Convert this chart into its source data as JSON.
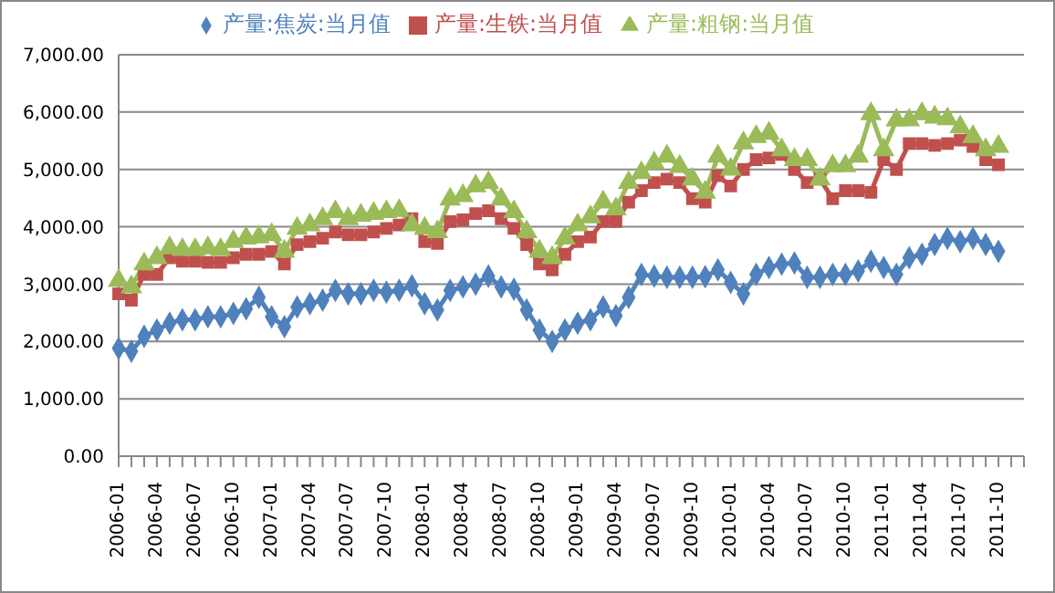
{
  "chart_data": {
    "type": "line",
    "categories": [
      "2006-01",
      null,
      null,
      "2006-04",
      null,
      null,
      "2006-07",
      null,
      null,
      "2006-10",
      null,
      null,
      "2007-01",
      null,
      null,
      "2007-04",
      null,
      null,
      "2007-07",
      null,
      null,
      "2007-10",
      null,
      null,
      "2008-01",
      null,
      null,
      "2008-04",
      null,
      null,
      "2008-07",
      null,
      null,
      "2008-10",
      null,
      null,
      "2009-01",
      null,
      null,
      "2009-04",
      null,
      null,
      "2009-07",
      null,
      null,
      "2009-10",
      null,
      null,
      "2010-01",
      null,
      null,
      "2010-04",
      null,
      null,
      "2010-07",
      null,
      null,
      "2010-10",
      null,
      null,
      "2011-01",
      null,
      null,
      "2011-04",
      null,
      null,
      "2011-07",
      null,
      null,
      "2011-10",
      null,
      null
    ],
    "series": [
      {
        "name": "产量:焦炭:当月值",
        "color": "#4f81bd",
        "marker": "diamond",
        "values": [
          1880,
          1830,
          2090,
          2200,
          2320,
          2380,
          2380,
          2430,
          2430,
          2490,
          2570,
          2770,
          2430,
          2260,
          2600,
          2660,
          2720,
          2890,
          2830,
          2830,
          2890,
          2860,
          2890,
          2970,
          2660,
          2550,
          2890,
          2950,
          3000,
          3140,
          2950,
          2910,
          2550,
          2200,
          2000,
          2200,
          2320,
          2380,
          2600,
          2450,
          2770,
          3170,
          3140,
          3120,
          3120,
          3120,
          3130,
          3250,
          3030,
          2830,
          3170,
          3290,
          3350,
          3370,
          3120,
          3120,
          3170,
          3170,
          3230,
          3400,
          3290,
          3170,
          3460,
          3520,
          3690,
          3800,
          3740,
          3800,
          3690,
          3570,
          null,
          null
        ]
      },
      {
        "name": "产量:生铁:当月值",
        "color": "#c0504d",
        "marker": "square",
        "values": [
          2830,
          2720,
          3170,
          3170,
          3460,
          3400,
          3400,
          3380,
          3380,
          3460,
          3520,
          3520,
          3570,
          3350,
          3690,
          3740,
          3800,
          3910,
          3860,
          3860,
          3910,
          3970,
          4030,
          4140,
          3740,
          3710,
          4090,
          4120,
          4230,
          4280,
          4140,
          3970,
          3690,
          3350,
          3250,
          3520,
          3740,
          3820,
          4090,
          4090,
          4430,
          4630,
          4770,
          4830,
          4770,
          4490,
          4430,
          4890,
          4710,
          5000,
          5170,
          5200,
          5260,
          5000,
          4770,
          4830,
          4490,
          4630,
          4630,
          4600,
          5170,
          5000,
          5450,
          5450,
          5420,
          5450,
          5510,
          5400,
          5170,
          5080,
          null,
          null
        ]
      },
      {
        "name": "产量:粗钢:当月值",
        "color": "#9bbb59",
        "marker": "triangle",
        "values": [
          3060,
          2950,
          3350,
          3460,
          3630,
          3600,
          3600,
          3630,
          3600,
          3740,
          3800,
          3820,
          3860,
          3570,
          3970,
          4030,
          4140,
          4260,
          4140,
          4200,
          4230,
          4260,
          4280,
          4030,
          3970,
          3910,
          4480,
          4540,
          4710,
          4770,
          4480,
          4260,
          3910,
          3570,
          3460,
          3800,
          4030,
          4170,
          4430,
          4310,
          4770,
          4940,
          5110,
          5230,
          5050,
          4830,
          4600,
          5230,
          5000,
          5460,
          5570,
          5630,
          5340,
          5170,
          5170,
          4830,
          5060,
          5060,
          5230,
          5970,
          5340,
          5860,
          5860,
          5970,
          5910,
          5880,
          5740,
          5570,
          5340,
          5400,
          null,
          null
        ]
      }
    ],
    "ylim": [
      0,
      7000
    ],
    "yticks": [
      {
        "value": 0,
        "label": "0.00"
      },
      {
        "value": 1000,
        "label": "1,000.00"
      },
      {
        "value": 2000,
        "label": "2,000.00"
      },
      {
        "value": 3000,
        "label": "3,000.00"
      },
      {
        "value": 4000,
        "label": "4,000.00"
      },
      {
        "value": 5000,
        "label": "5,000.00"
      },
      {
        "value": 6000,
        "label": "6,000.00"
      },
      {
        "value": 7000,
        "label": "7,000.00"
      }
    ],
    "grid": "y",
    "legend": "top"
  }
}
